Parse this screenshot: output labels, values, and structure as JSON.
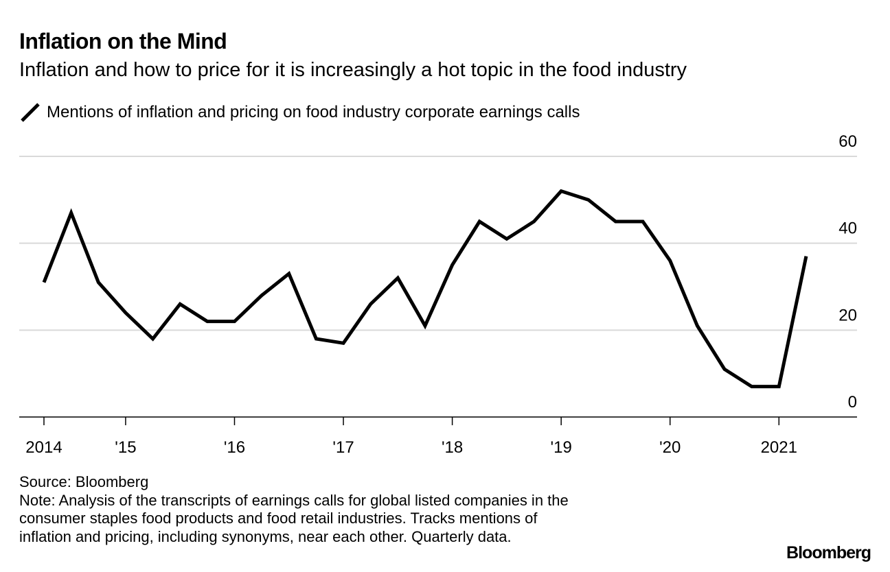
{
  "header": {
    "title": "Inflation on the Mind",
    "subtitle": "Inflation and how to price for it is increasingly a hot topic in the food industry"
  },
  "chart_data": {
    "type": "line",
    "title": "Inflation on the Mind",
    "subtitle": "Inflation and how to price for it is increasingly a hot topic in the food industry",
    "xlabel": "",
    "ylabel": "",
    "ylim": [
      0,
      60
    ],
    "yticks": [
      0,
      20,
      40,
      60
    ],
    "grid": true,
    "legend_position": "top-left",
    "x_ticks": [
      {
        "label": "2014",
        "index": 0
      },
      {
        "label": "'15",
        "index": 3
      },
      {
        "label": "'16",
        "index": 7
      },
      {
        "label": "'17",
        "index": 11
      },
      {
        "label": "'18",
        "index": 15
      },
      {
        "label": "'19",
        "index": 19
      },
      {
        "label": "'20",
        "index": 23
      },
      {
        "label": "2021",
        "index": 27
      }
    ],
    "series": [
      {
        "name": "Mentions of inflation and pricing on food industry corporate earnings calls",
        "color": "#000000",
        "values": [
          31,
          47,
          31,
          24,
          18,
          26,
          22,
          22,
          28,
          33,
          18,
          17,
          26,
          32,
          21,
          35,
          45,
          41,
          45,
          52,
          50,
          45,
          45,
          36,
          21,
          11,
          7,
          7,
          37
        ]
      }
    ]
  },
  "footer": {
    "source": "Source: Bloomberg",
    "note": [
      "Note: Analysis of the transcripts of earnings calls for global listed companies in the",
      "consumer staples food products and food retail industries. Tracks mentions of",
      "inflation and pricing, including synonyms, near each other. Quarterly data."
    ],
    "logo": "Bloomberg"
  }
}
